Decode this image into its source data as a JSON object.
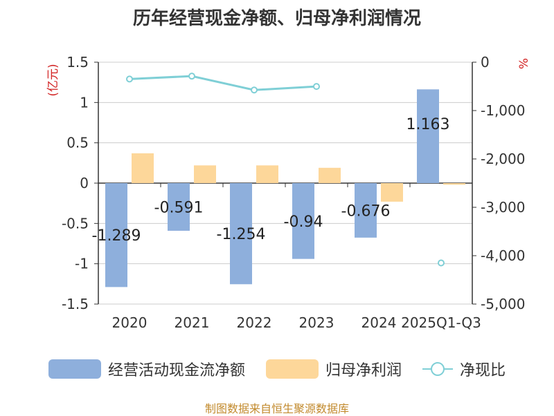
{
  "title": "历年经营现金净额、归母净利润情况",
  "source_note": "制图数据来自恒生聚源数据库",
  "colors": {
    "cash_flow": "#8eafdc",
    "net_profit": "#fdd79a",
    "ratio": "#7fcfd6",
    "unit_red": "#d22222"
  },
  "chart_data": {
    "type": "bar",
    "categories": [
      "2020",
      "2021",
      "2022",
      "2023",
      "2024",
      "2025Q1-Q3"
    ],
    "series": [
      {
        "name": "经营活动现金流净额",
        "type": "bar",
        "axis": "left",
        "values": [
          -1.289,
          -0.591,
          -1.254,
          -0.94,
          -0.676,
          1.163
        ],
        "labels": [
          "-1.289",
          "-0.591",
          "-1.254",
          "-0.94",
          "-0.676",
          "1.163"
        ]
      },
      {
        "name": "归母净利润",
        "type": "bar",
        "axis": "left",
        "values": [
          0.37,
          0.22,
          0.22,
          0.19,
          -0.23,
          -0.02
        ]
      },
      {
        "name": "净现比",
        "type": "line",
        "axis": "right",
        "values": [
          -348,
          -288,
          -575,
          -502,
          null,
          -4150
        ]
      }
    ],
    "y_left": {
      "label": "(亿元)",
      "min": -1.5,
      "max": 1.5,
      "ticks": [
        1.5,
        1,
        0.5,
        0,
        -0.5,
        -1,
        -1.5
      ],
      "tick_labels": [
        "1.5",
        "1",
        "0.5",
        "0",
        "-0.5",
        "-1",
        "-1.5"
      ]
    },
    "y_right": {
      "label": "%",
      "min": -5000,
      "max": 0,
      "ticks": [
        0,
        -1000,
        -2000,
        -3000,
        -4000,
        -5000
      ],
      "tick_labels": [
        "0",
        "-1,000",
        "-2,000",
        "-3,000",
        "-4,000",
        "-5,000"
      ]
    },
    "grid": true,
    "legend_position": "bottom"
  }
}
